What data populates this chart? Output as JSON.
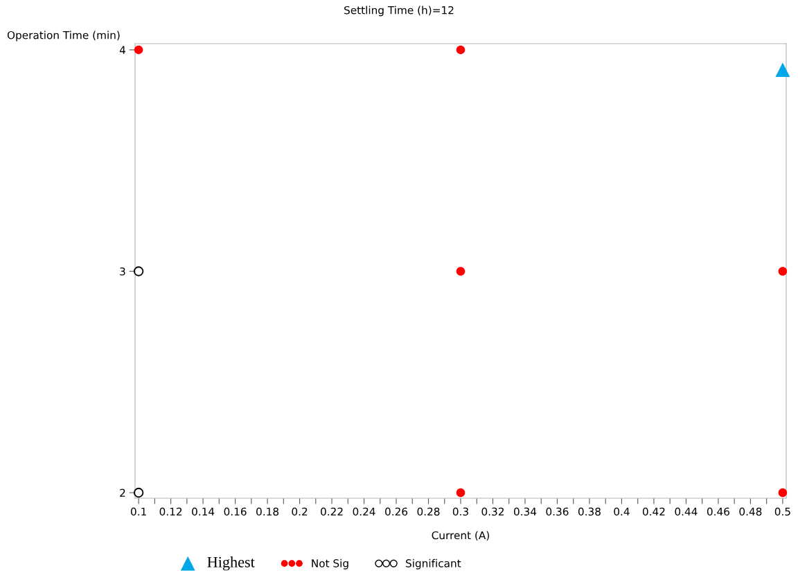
{
  "chart_data": {
    "type": "scatter",
    "title": "Settling Time (h)=12",
    "xlabel": "Current (A)",
    "ylabel": "Operation Time (min)",
    "xlim": [
      0.0978,
      0.5022
    ],
    "ylim": [
      1.975,
      4.028
    ],
    "xticks": [
      0.1,
      {
        "value": 0.11,
        "label": null
      },
      0.12,
      {
        "value": 0.13,
        "label": null
      },
      0.14,
      {
        "value": 0.15,
        "label": null
      },
      0.16,
      {
        "value": 0.17,
        "label": null
      },
      0.18,
      {
        "value": 0.19,
        "label": null
      },
      0.2,
      {
        "value": 0.21,
        "label": null
      },
      0.22,
      {
        "value": 0.23,
        "label": null
      },
      0.24,
      {
        "value": 0.25,
        "label": null
      },
      0.26,
      {
        "value": 0.27,
        "label": null
      },
      0.28,
      {
        "value": 0.29,
        "label": null
      },
      0.3,
      {
        "value": 0.31,
        "label": null
      },
      0.32,
      {
        "value": 0.33,
        "label": null
      },
      0.34,
      {
        "value": 0.35,
        "label": null
      },
      0.36,
      {
        "value": 0.37,
        "label": null
      },
      0.38,
      {
        "value": 0.39,
        "label": null
      },
      0.4,
      {
        "value": 0.41,
        "label": null
      },
      0.42,
      {
        "value": 0.43,
        "label": null
      },
      0.44,
      {
        "value": 0.45,
        "label": null
      },
      0.46,
      {
        "value": 0.47,
        "label": null
      },
      0.48,
      {
        "value": 0.49,
        "label": null
      },
      0.5
    ],
    "yticks": [
      2,
      3,
      4
    ],
    "grid": false,
    "legend": "bottom",
    "series": [
      {
        "name": "Highest",
        "color": "#00a8e8",
        "marker": "triangle",
        "x": [
          0.5
        ],
        "values": [
          3.91
        ]
      },
      {
        "name": "Not Sig",
        "color": "#ff0000",
        "marker": "circle",
        "x": [
          0.1,
          0.3,
          0.3,
          0.5,
          0.3,
          0.5
        ],
        "values": [
          4,
          4,
          3,
          3,
          2,
          2
        ]
      },
      {
        "name": "Significant",
        "color": "#000000",
        "marker": "open circle",
        "x": [
          0.1,
          0.1
        ],
        "values": [
          3,
          2
        ]
      }
    ]
  }
}
